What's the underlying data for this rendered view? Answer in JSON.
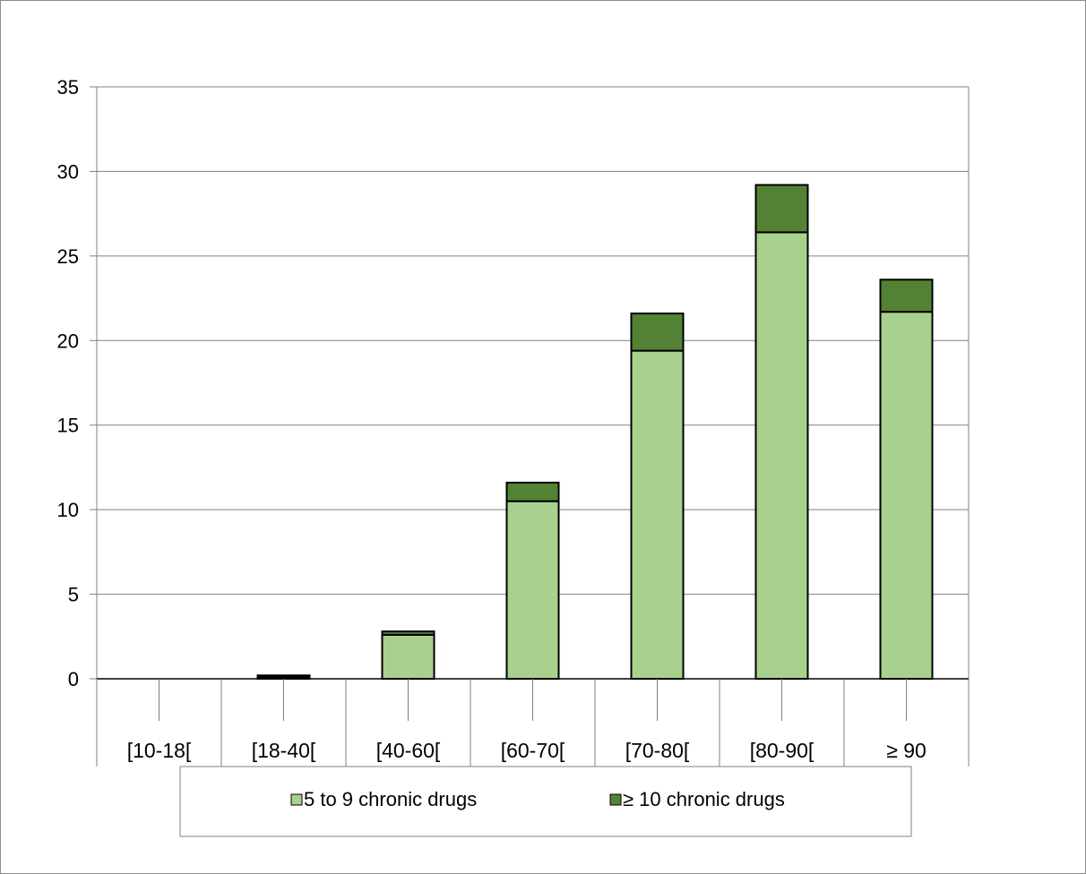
{
  "chart_data": {
    "type": "bar",
    "stacked": true,
    "categories": [
      "[10-18[",
      "[18-40[",
      "[40-60[",
      "[60-70[",
      "[70-80[",
      "[80-90[",
      "≥ 90"
    ],
    "series": [
      {
        "name": "5 to 9 chronic drugs",
        "values": [
          0.0,
          0.1,
          2.6,
          10.5,
          19.4,
          26.4,
          21.7
        ],
        "color": "#a9d18e"
      },
      {
        "name": "≥ 10 chronic drugs",
        "values": [
          0.0,
          0.1,
          0.2,
          1.1,
          2.2,
          2.8,
          1.9
        ],
        "color": "#548235"
      }
    ],
    "title": "",
    "xlabel": "",
    "ylabel": "",
    "ylim": [
      0,
      35
    ],
    "yticks": [
      0,
      5,
      10,
      15,
      20,
      25,
      30,
      35
    ],
    "grid": true,
    "legend_position": "bottom"
  },
  "colors": {
    "gridline": "#808080",
    "bar_outline": "#000000",
    "frame": "#8c8c8c"
  }
}
